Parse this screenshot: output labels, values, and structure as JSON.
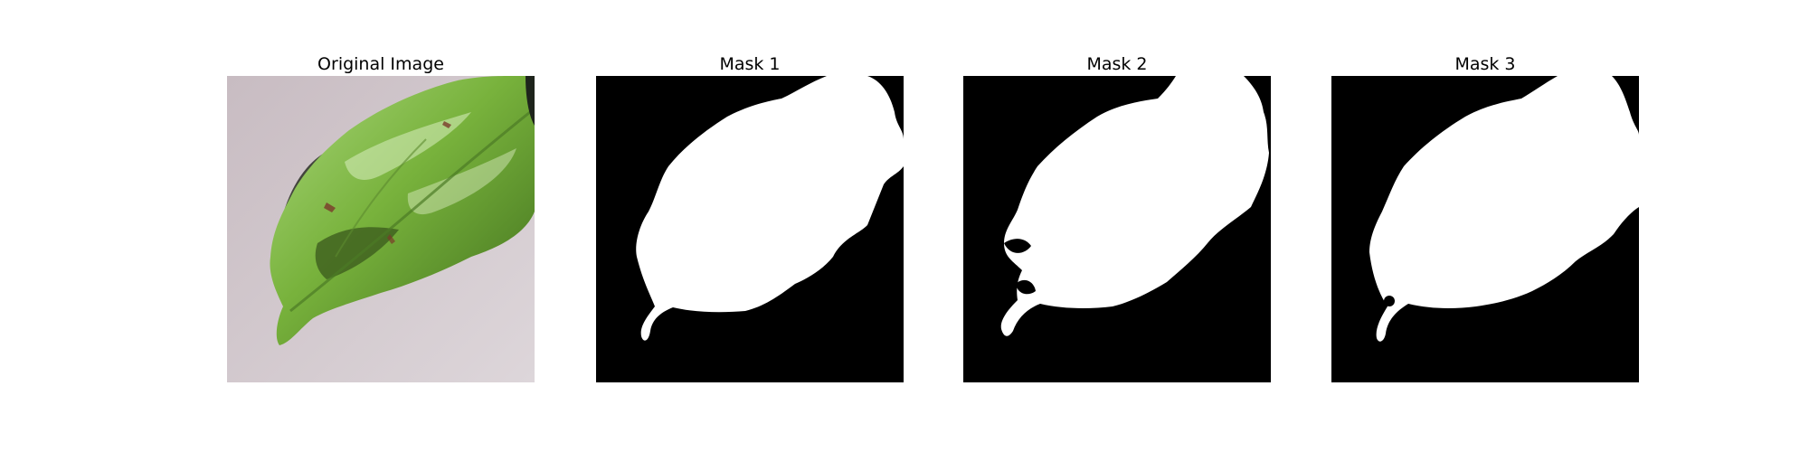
{
  "figure": {
    "panels": [
      {
        "title": "Original Image",
        "kind": "photo"
      },
      {
        "title": "Mask 1",
        "kind": "mask"
      },
      {
        "title": "Mask 2",
        "kind": "mask"
      },
      {
        "title": "Mask 3",
        "kind": "mask"
      }
    ],
    "colors": {
      "background": "#ffffff",
      "mask_background": "#000000",
      "mask_foreground": "#ffffff",
      "surface": "#cfc4c9",
      "leaf_light": "#a9d67a",
      "leaf_mid": "#78b23c",
      "leaf_dark": "#3f6e1c",
      "shadow": "#1f261b"
    }
  }
}
